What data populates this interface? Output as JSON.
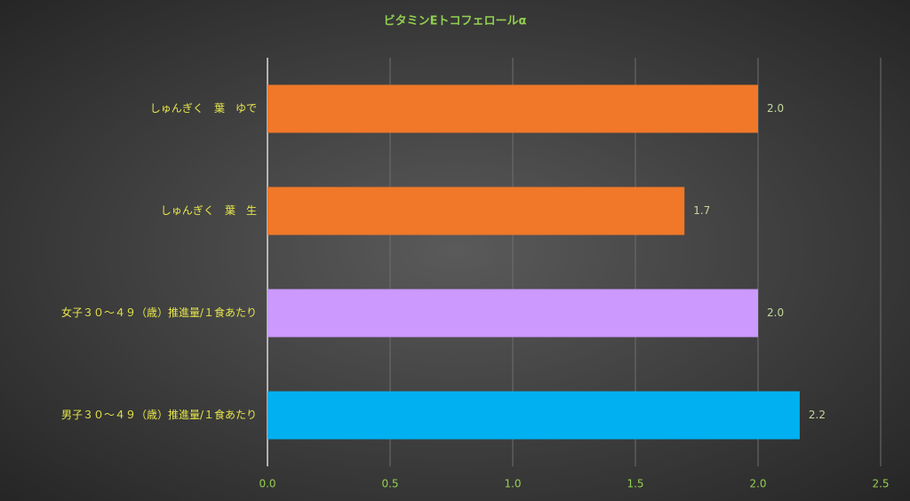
{
  "chart_data": {
    "type": "barh",
    "title": "ビタミンEトコフェロールα",
    "categories": [
      "しゅんぎく　葉　ゆで",
      "しゅんぎく　葉　生",
      "女子３０～４９（歳）推進量/１食あたり",
      "男子３０～４９（歳）推進量/１食あたり"
    ],
    "values": [
      2.0,
      1.7,
      2.0,
      2.17
    ],
    "value_labels": [
      "2.0",
      "1.7",
      "2.0",
      "2.2"
    ],
    "colors": [
      "#f07828",
      "#f07828",
      "#cc99ff",
      "#00b0f0"
    ],
    "xlim": [
      0,
      2.5
    ],
    "xticks": [
      {
        "value": 0,
        "label": "0.0"
      },
      0.5,
      {
        "value": 1,
        "label": "1.0"
      },
      1.5,
      {
        "value": 2,
        "label": "2.0"
      },
      2.5
    ],
    "grid": true
  }
}
